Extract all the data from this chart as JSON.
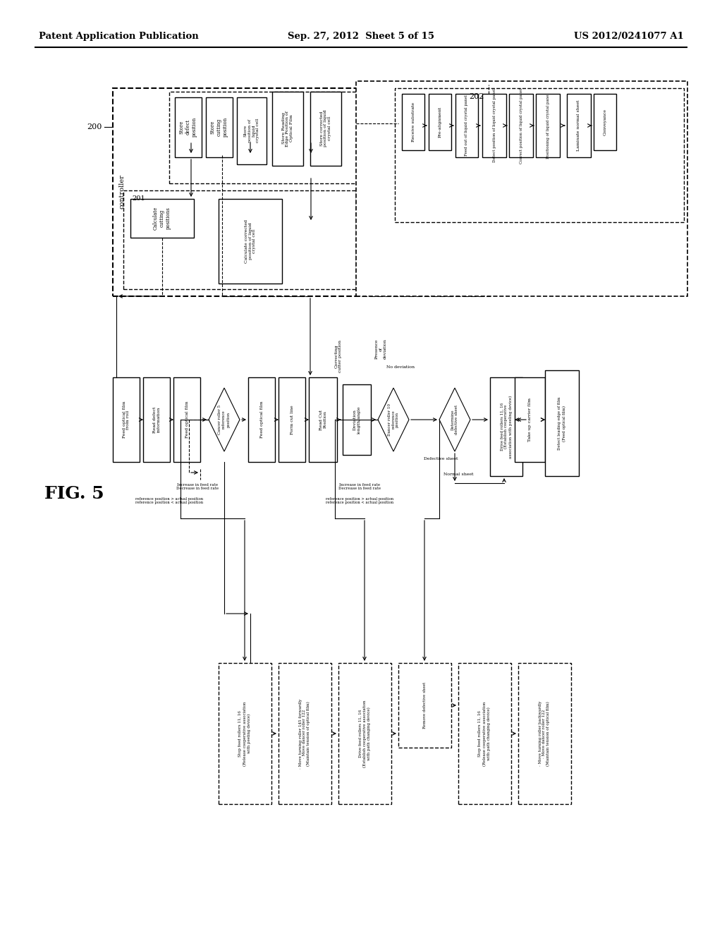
{
  "title_left": "Patent Application Publication",
  "title_center": "Sep. 27, 2012  Sheet 5 of 15",
  "title_right": "US 2012/0241077 A1",
  "fig_label": "FIG. 5",
  "background": "#ffffff"
}
